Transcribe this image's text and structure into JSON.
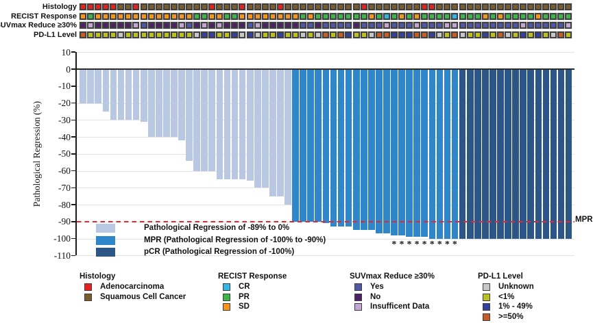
{
  "tracks": {
    "rows": [
      {
        "key": "histology",
        "label": "Histology",
        "cells": "AAAAASSASSSSSSSSSASSSASSSSASSSSSSSSSSASSSSSSSAASSSSSSSSSSSSSSSSSS",
        "palette": {
          "A": "#e8211d",
          "S": "#7b5d2d"
        }
      },
      {
        "key": "recist",
        "label": "RECIST Response",
        "cells": "DPDDDDDDDDDDDDDPPDDPPDDDDDDDDPDPPPPPPPDPCPDPDPPPPCPPPDPDPPPPDPPPP",
        "palette": {
          "D": "#f7941e",
          "P": "#3cb54b",
          "C": "#33b7e7"
        }
      },
      {
        "key": "suvmax",
        "label": "SUVmax Reduce ≥30%",
        "cells": "NINNNNNIYNNNNIYNININNNYINNNNNYYNYYYYNYYYIYYYIYYYIIYYYYYYYYIYYYYYI",
        "palette": {
          "Y": "#5057a8",
          "N": "#4d2365",
          "I": "#c3a6d2"
        }
      },
      {
        "key": "pdl1",
        "label": "PD-L1 Level",
        "cells": "FLLLLULLLLLLLLLUBBLLBUBULLBLLULUFLFBLLUFFBBBFFBULFULLBLFULBLBLUFL",
        "palette": {
          "U": "#c7c7c7",
          "L": "#bcc022",
          "B": "#33409c",
          "F": "#c55d28"
        }
      }
    ]
  },
  "chart_data": {
    "type": "bar",
    "title": "",
    "xlabel": "",
    "ylabel": "Pathological Regression (%)",
    "ylim": [
      -110,
      10
    ],
    "yticks": [
      10,
      0,
      -10,
      -20,
      -30,
      -40,
      -50,
      -60,
      -70,
      -80,
      -90,
      -100,
      -110
    ],
    "grid": true,
    "n_patients": 65,
    "values": [
      -20,
      -20,
      -20,
      -25,
      -30,
      -30,
      -30,
      -30,
      -31,
      -40,
      -40,
      -40,
      -40,
      -42,
      -54,
      -60,
      -60,
      -60,
      -65,
      -65,
      -65,
      -65,
      -66,
      -70,
      -70,
      -75,
      -75,
      -80,
      -90,
      -90,
      -90,
      -90,
      -91,
      -93,
      -93,
      -93,
      -95,
      -95,
      -95,
      -97,
      -97,
      -98,
      -98,
      -99,
      -99,
      -99,
      -100,
      -100,
      -100,
      -100,
      -100,
      -100,
      -100,
      -100,
      -100,
      -100,
      -100,
      -100,
      -100,
      -100,
      -100,
      -100,
      -100,
      -100,
      -100
    ],
    "groups": [
      {
        "key": "reg",
        "count": 28,
        "color": "#b9c8e2"
      },
      {
        "key": "mpr",
        "count": 22,
        "color": "#2f87c9"
      },
      {
        "key": "pcr",
        "count": 15,
        "color": "#2b5687"
      }
    ],
    "asterisk_columns": [
      42,
      43,
      44,
      45,
      46,
      47,
      48,
      49,
      50
    ],
    "asterisk_symbol": "*"
  },
  "mpr_line": {
    "y": -90,
    "label": "MPR",
    "color": "#e8262d"
  },
  "chart_legend": {
    "items": [
      {
        "key": "reg",
        "color": "#b9c8e2",
        "label": "Pathological Regression of -89% to 0%"
      },
      {
        "key": "mpr",
        "color": "#2f87c9",
        "label": "MPR (Pathological Regression of -100% to -90%)"
      },
      {
        "key": "pcr",
        "color": "#2b5687",
        "label": "pCR (Pathological Regression of -100%)"
      }
    ]
  },
  "bottom_legend": {
    "groups": [
      {
        "title": "Histology",
        "items": [
          {
            "color": "#e8211d",
            "label": "Adenocarcinoma"
          },
          {
            "color": "#7b5d2d",
            "label": "Squamous Cell Cancer"
          }
        ]
      },
      {
        "title": "RECIST Response",
        "items": [
          {
            "color": "#33b7e7",
            "label": "CR"
          },
          {
            "color": "#3cb54b",
            "label": "PR"
          },
          {
            "color": "#f7941e",
            "label": "SD"
          }
        ]
      },
      {
        "title": "SUVmax Reduce ≥30%",
        "items": [
          {
            "color": "#5057a8",
            "label": "Yes"
          },
          {
            "color": "#4d2365",
            "label": "No"
          },
          {
            "color": "#c3a6d2",
            "label": "Insufficent Data"
          }
        ]
      },
      {
        "title": "PD-L1 Level",
        "items": [
          {
            "color": "#c7c7c7",
            "label": "Unknown"
          },
          {
            "color": "#bcc022",
            "label": "<1%"
          },
          {
            "color": "#33409c",
            "label": "1% - 49%"
          },
          {
            "color": "#c55d28",
            "label": ">=50%"
          }
        ]
      }
    ]
  }
}
